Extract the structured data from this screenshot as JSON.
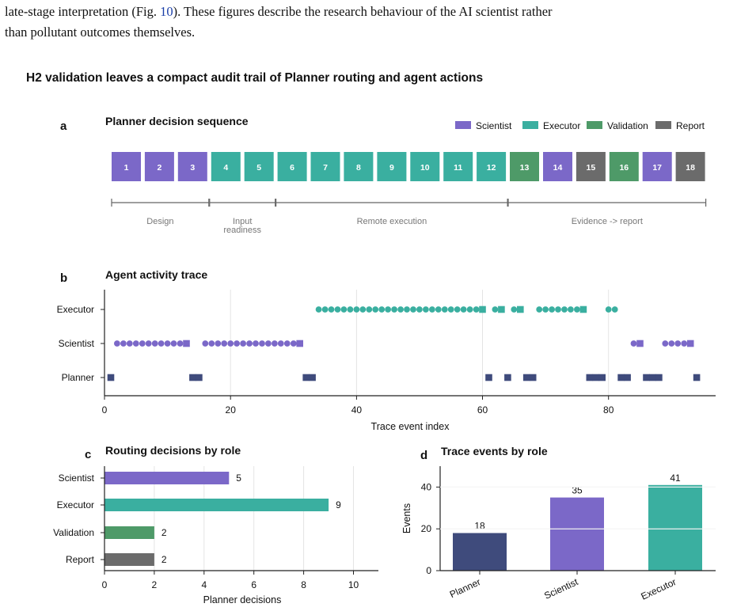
{
  "intro": {
    "text_before_ref": "late-stage interpretation (Fig. ",
    "ref": "10",
    "text_after_ref": "). These figures describe the research behaviour of the AI scientist rather",
    "line2": "than pollutant outcomes themselves."
  },
  "figure_title": "H2 validation leaves a compact audit trail of Planner routing and agent actions",
  "colors": {
    "Scientist": "#7b68c8",
    "Executor": "#3aafa0",
    "Validation": "#4e9a68",
    "Report": "#6b6b6b",
    "Planner": "#3f4b7c"
  },
  "chart_data": [
    {
      "panel": "a",
      "type": "table",
      "title": "Planner decision sequence",
      "legend": [
        "Scientist",
        "Executor",
        "Validation",
        "Report"
      ],
      "legend_position": "top-right",
      "decisions": [
        {
          "step": "1",
          "role": "Scientist"
        },
        {
          "step": "2",
          "role": "Scientist"
        },
        {
          "step": "3",
          "role": "Scientist"
        },
        {
          "step": "4",
          "role": "Executor"
        },
        {
          "step": "5",
          "role": "Executor"
        },
        {
          "step": "6",
          "role": "Executor"
        },
        {
          "step": "7",
          "role": "Executor"
        },
        {
          "step": "8",
          "role": "Executor"
        },
        {
          "step": "9",
          "role": "Executor"
        },
        {
          "step": "10",
          "role": "Executor"
        },
        {
          "step": "11",
          "role": "Executor"
        },
        {
          "step": "12",
          "role": "Executor"
        },
        {
          "step": "13",
          "role": "Validation"
        },
        {
          "step": "14",
          "role": "Scientist"
        },
        {
          "step": "15",
          "role": "Report"
        },
        {
          "step": "16",
          "role": "Validation"
        },
        {
          "step": "17",
          "role": "Scientist"
        },
        {
          "step": "18",
          "role": "Report"
        }
      ],
      "phases": [
        {
          "label": "Design",
          "from_step": 1,
          "to_step": 3
        },
        {
          "label": "Input readiness",
          "label_lines": [
            "Input",
            "readiness"
          ],
          "from_step": 4,
          "to_step": 5
        },
        {
          "label": "Remote execution",
          "from_step": 6,
          "to_step": 12
        },
        {
          "label": "Evidence -> report",
          "from_step": 13,
          "to_step": 18
        }
      ]
    },
    {
      "panel": "b",
      "type": "scatter",
      "title": "Agent activity trace",
      "xlabel": "Trace event index",
      "ylabel": "",
      "xlim": [
        0,
        97
      ],
      "xticks": [
        0,
        20,
        40,
        60,
        80
      ],
      "categories": [
        "Planner",
        "Scientist",
        "Executor"
      ],
      "grid": "vertical",
      "marker_note": "squares mark Planner-routed handoffs",
      "series": [
        {
          "name": "Planner",
          "circles": [],
          "squares": [
            1,
            14,
            15,
            32,
            33,
            61,
            64,
            67,
            68,
            77,
            78,
            79,
            82,
            83,
            86,
            87,
            88,
            94
          ]
        },
        {
          "name": "Scientist",
          "circles": [
            2,
            3,
            4,
            5,
            6,
            7,
            8,
            9,
            10,
            11,
            12,
            16,
            17,
            18,
            19,
            20,
            21,
            22,
            23,
            24,
            25,
            26,
            27,
            28,
            29,
            30,
            84,
            89,
            90,
            91,
            92
          ],
          "squares": [
            13,
            31,
            85,
            93
          ]
        },
        {
          "name": "Executor",
          "circles": [
            34,
            35,
            36,
            37,
            38,
            39,
            40,
            41,
            42,
            43,
            44,
            45,
            46,
            47,
            48,
            49,
            50,
            51,
            52,
            53,
            54,
            55,
            56,
            57,
            58,
            59,
            62,
            65,
            69,
            70,
            71,
            72,
            73,
            74,
            75,
            80,
            81
          ],
          "squares": [
            60,
            63,
            66,
            76
          ]
        }
      ]
    },
    {
      "panel": "c",
      "type": "bar",
      "orientation": "horizontal",
      "title": "Routing decisions by role",
      "xlabel": "Planner decisions",
      "ylabel": "",
      "xlim": [
        0,
        11
      ],
      "xticks": [
        0,
        2,
        4,
        6,
        8,
        10
      ],
      "grid": "vertical",
      "categories": [
        "Scientist",
        "Executor",
        "Validation",
        "Report"
      ],
      "values": [
        5,
        9,
        2,
        2
      ]
    },
    {
      "panel": "d",
      "type": "bar",
      "title": "Trace events by role",
      "xlabel": "",
      "ylabel": "Events",
      "ylim": [
        0,
        50
      ],
      "yticks": [
        0,
        20,
        40
      ],
      "grid": "horizontal",
      "categories": [
        "Planner",
        "Scientist",
        "Executor"
      ],
      "values": [
        18,
        35,
        41
      ]
    }
  ]
}
